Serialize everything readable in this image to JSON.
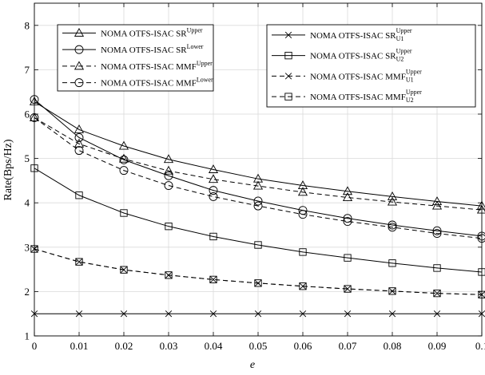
{
  "chart_data": {
    "type": "line",
    "xlabel": "e",
    "ylabel": "Rate(Bps/Hz)",
    "xlim": [
      0,
      0.1
    ],
    "ylim": [
      1,
      8.5
    ],
    "grid": true,
    "x": [
      0,
      0.01,
      0.02,
      0.03,
      0.04,
      0.05,
      0.06,
      0.07,
      0.08,
      0.09,
      0.1
    ],
    "x_tick_labels": [
      "0",
      "0.01",
      "0.02",
      "0.03",
      "0.04",
      "0.05",
      "0.06",
      "0.07",
      "0.08",
      "0.09",
      "0.1"
    ],
    "y_ticks": [
      1,
      2,
      3,
      4,
      5,
      6,
      7,
      8
    ],
    "y_tick_labels": [
      "1",
      "2",
      "3",
      "4",
      "5",
      "6",
      "7",
      "8"
    ],
    "legends": [
      {
        "placement": "top-left",
        "entries": [
          {
            "series": 0,
            "main": "NOMA OTFS-ISAC SR",
            "sup": "Upper",
            "sub": ""
          },
          {
            "series": 1,
            "main": "NOMA OTFS-ISAC SR",
            "sup": "Lower",
            "sub": ""
          },
          {
            "series": 2,
            "main": "NOMA OTFS-ISAC MMF",
            "sup": "Upper",
            "sub": ""
          },
          {
            "series": 3,
            "main": "NOMA OTFS-ISAC MMF",
            "sup": "Lower",
            "sub": ""
          }
        ]
      },
      {
        "placement": "top-right",
        "entries": [
          {
            "series": 4,
            "main": "NOMA OTFS-ISAC SR",
            "sup": "Upper",
            "sub": "U1"
          },
          {
            "series": 5,
            "main": "NOMA OTFS-ISAC SR",
            "sup": "Upper",
            "sub": "U2"
          },
          {
            "series": 6,
            "main": "NOMA OTFS-ISAC MMF",
            "sup": "Upper",
            "sub": "U1"
          },
          {
            "series": 7,
            "main": "NOMA OTFS-ISAC MMF",
            "sup": "Upper",
            "sub": "U2"
          }
        ]
      }
    ],
    "series": [
      {
        "marker": "triangle",
        "dash": "solid",
        "values": [
          6.28,
          5.65,
          5.28,
          4.98,
          4.75,
          4.54,
          4.39,
          4.26,
          4.14,
          4.03,
          3.93
        ]
      },
      {
        "marker": "circle",
        "dash": "solid",
        "values": [
          6.33,
          5.47,
          4.97,
          4.61,
          4.28,
          4.04,
          3.83,
          3.65,
          3.5,
          3.37,
          3.25
        ]
      },
      {
        "marker": "triangle",
        "dash": "dashed",
        "values": [
          5.92,
          5.33,
          4.99,
          4.72,
          4.53,
          4.38,
          4.24,
          4.12,
          4.02,
          3.93,
          3.84
        ]
      },
      {
        "marker": "circle",
        "dash": "dashed",
        "values": [
          5.92,
          5.18,
          4.73,
          4.39,
          4.14,
          3.93,
          3.74,
          3.58,
          3.45,
          3.31,
          3.2
        ]
      },
      {
        "marker": "cross",
        "dash": "solid",
        "values": [
          1.5,
          1.5,
          1.5,
          1.5,
          1.5,
          1.5,
          1.5,
          1.5,
          1.5,
          1.5,
          1.5
        ]
      },
      {
        "marker": "square",
        "dash": "solid",
        "values": [
          4.78,
          4.17,
          3.77,
          3.47,
          3.24,
          3.05,
          2.89,
          2.76,
          2.64,
          2.53,
          2.44
        ]
      },
      {
        "marker": "cross",
        "dash": "dashed",
        "values": [
          2.96,
          2.67,
          2.49,
          2.37,
          2.27,
          2.19,
          2.12,
          2.06,
          2.01,
          1.96,
          1.93
        ]
      },
      {
        "marker": "square",
        "dash": "dashed",
        "values": [
          2.96,
          2.67,
          2.49,
          2.37,
          2.27,
          2.19,
          2.12,
          2.06,
          2.01,
          1.96,
          1.93
        ]
      }
    ]
  }
}
